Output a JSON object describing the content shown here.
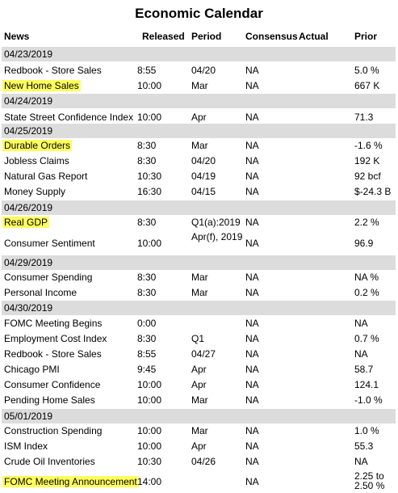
{
  "title": "Economic Calendar",
  "headers": {
    "news": "News",
    "released": "Released",
    "period": "Period",
    "consensus": "Consensus",
    "actual": "Actual",
    "prior": "Prior"
  },
  "highlight_color": "#ffff5c",
  "rows": [
    {
      "type": "date",
      "label": "04/23/2019"
    },
    {
      "type": "event",
      "news": "Redbook - Store Sales",
      "released": "8:55",
      "period": "04/20",
      "consensus": "NA",
      "actual": "",
      "prior": "5.0 %",
      "highlighted": false
    },
    {
      "type": "event",
      "news": "New Home Sales",
      "released": "10:00",
      "period": "Mar",
      "consensus": "NA",
      "actual": "",
      "prior": "667 K",
      "highlighted": true
    },
    {
      "type": "date",
      "label": "04/24/2019"
    },
    {
      "type": "event",
      "news": "State Street Confidence Index",
      "released": "10:00",
      "period": "Apr",
      "consensus": "NA",
      "actual": "",
      "prior": "71.3",
      "highlighted": false
    },
    {
      "type": "date",
      "label": "04/25/2019"
    },
    {
      "type": "event",
      "news": "Durable Orders",
      "released": "8:30",
      "period": "Mar",
      "consensus": "NA",
      "actual": "",
      "prior": "-1.6 %",
      "highlighted": true
    },
    {
      "type": "event",
      "news": "Jobless Claims",
      "released": "8:30",
      "period": "04/20",
      "consensus": "NA",
      "actual": "",
      "prior": "192 K",
      "highlighted": false
    },
    {
      "type": "event",
      "news": "Natural Gas Report",
      "released": "10:30",
      "period": "04/19",
      "consensus": "NA",
      "actual": "",
      "prior": "92 bcf",
      "highlighted": false
    },
    {
      "type": "event",
      "news": "Money Supply",
      "released": "16:30",
      "period": "04/15",
      "consensus": "NA",
      "actual": "",
      "prior": "$-24.3 B",
      "highlighted": false
    },
    {
      "type": "date",
      "label": "04/26/2019"
    },
    {
      "type": "event",
      "news": "Real GDP",
      "released": "8:30",
      "period": "Q1(a):2019",
      "consensus": "NA",
      "actual": "",
      "prior": "2.2 %",
      "highlighted": true
    },
    {
      "type": "event",
      "news": "Consumer Sentiment",
      "released": "10:00",
      "period": "Apr(f), 2019",
      "consensus": "NA",
      "actual": "",
      "prior": "96.9",
      "highlighted": false
    },
    {
      "type": "date",
      "label": "04/29/2019"
    },
    {
      "type": "event",
      "news": "Consumer Spending",
      "released": "8:30",
      "period": "Mar",
      "consensus": "NA",
      "actual": "",
      "prior": "NA %",
      "highlighted": false
    },
    {
      "type": "event",
      "news": "Personal Income",
      "released": "8:30",
      "period": "Mar",
      "consensus": "NA",
      "actual": "",
      "prior": "0.2 %",
      "highlighted": false
    },
    {
      "type": "date",
      "label": "04/30/2019"
    },
    {
      "type": "event",
      "news": "FOMC Meeting Begins",
      "released": "0:00",
      "period": "",
      "consensus": "NA",
      "actual": "",
      "prior": "NA",
      "highlighted": false
    },
    {
      "type": "event",
      "news": "Employment Cost Index",
      "released": "8:30",
      "period": "Q1",
      "consensus": "NA",
      "actual": "",
      "prior": "0.7 %",
      "highlighted": false
    },
    {
      "type": "event",
      "news": "Redbook - Store Sales",
      "released": "8:55",
      "period": "04/27",
      "consensus": "NA",
      "actual": "",
      "prior": "NA",
      "highlighted": false
    },
    {
      "type": "event",
      "news": "Chicago PMI",
      "released": "9:45",
      "period": "Apr",
      "consensus": "NA",
      "actual": "",
      "prior": "58.7",
      "highlighted": false
    },
    {
      "type": "event",
      "news": "Consumer Confidence",
      "released": "10:00",
      "period": "Apr",
      "consensus": "NA",
      "actual": "",
      "prior": "124.1",
      "highlighted": false
    },
    {
      "type": "event",
      "news": "Pending Home Sales",
      "released": "10:00",
      "period": "Mar",
      "consensus": "NA",
      "actual": "",
      "prior": "-1.0 %",
      "highlighted": false
    },
    {
      "type": "date",
      "label": "05/01/2019"
    },
    {
      "type": "event",
      "news": "Construction Spending",
      "released": "10:00",
      "period": "Mar",
      "consensus": "NA",
      "actual": "",
      "prior": "1.0 %",
      "highlighted": false
    },
    {
      "type": "event",
      "news": "ISM Index",
      "released": "10:00",
      "period": "Apr",
      "consensus": "NA",
      "actual": "",
      "prior": "55.3",
      "highlighted": false
    },
    {
      "type": "event",
      "news": "Crude Oil Inventories",
      "released": "10:30",
      "period": "04/26",
      "consensus": "NA",
      "actual": "",
      "prior": "NA",
      "highlighted": false
    },
    {
      "type": "event",
      "news": "FOMC Meeting Announcement",
      "released": "14:00",
      "period": "",
      "consensus": "NA",
      "actual": "",
      "prior": "2.25 to 2.50 %",
      "highlighted": true
    }
  ]
}
